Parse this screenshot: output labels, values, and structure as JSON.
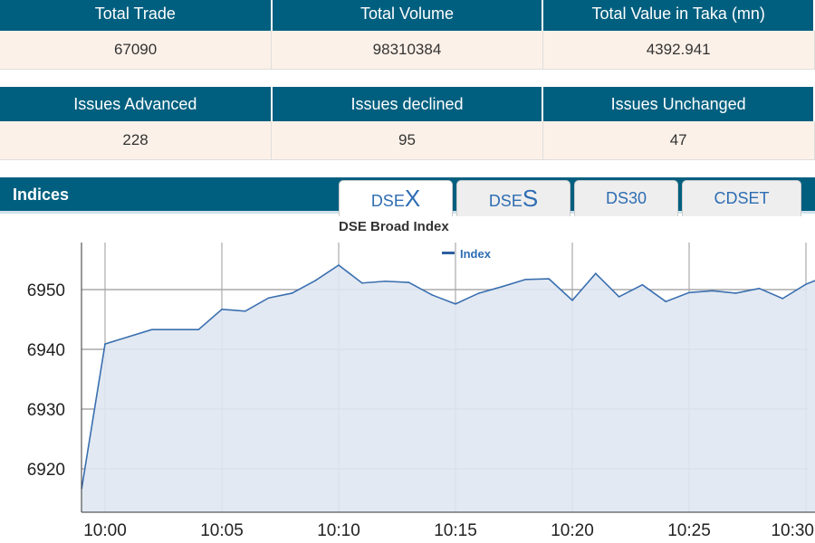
{
  "summary1": {
    "headers": [
      "Total Trade",
      "Total Volume",
      "Total Value in Taka (mn)"
    ],
    "values": [
      "67090",
      "98310384",
      "4392.941"
    ]
  },
  "summary2": {
    "headers": [
      "Issues Advanced",
      "Issues declined",
      "Issues Unchanged"
    ],
    "values": [
      "228",
      "95",
      "47"
    ]
  },
  "indices": {
    "title": "Indices",
    "tabs": [
      {
        "prefix": "DSE",
        "suffix": "X"
      },
      {
        "prefix": "DSE",
        "suffix": "S"
      },
      {
        "label": "DS30"
      },
      {
        "label": "CDSET"
      }
    ]
  },
  "chart_data": {
    "type": "area",
    "title": "DSE Broad Index",
    "legend": "Index",
    "legend_position": "top-center",
    "x_ticks": [
      "10:00",
      "10:05",
      "10:10",
      "10:15",
      "10:20",
      "10:25",
      "10:30"
    ],
    "y_ticks": [
      6920,
      6930,
      6940,
      6950
    ],
    "ylim": [
      6914,
      6958
    ],
    "x_minutes": [
      -1,
      0,
      1,
      2,
      3,
      4,
      5,
      6,
      7,
      8,
      9,
      10,
      11,
      12,
      13,
      14,
      15,
      16,
      17,
      18,
      19,
      20,
      21,
      22,
      23,
      24,
      25,
      26,
      27,
      28,
      29,
      30,
      31
    ],
    "values": [
      6916.7,
      6940.9,
      6942.1,
      6943.3,
      6943.3,
      6943.3,
      6946.7,
      6946.4,
      6948.6,
      6949.4,
      6951.5,
      6954.1,
      6951.1,
      6951.4,
      6951.2,
      6949.1,
      6947.6,
      6949.4,
      6950.5,
      6951.7,
      6951.8,
      6948.2,
      6952.7,
      6948.8,
      6950.8,
      6948.0,
      6949.5,
      6949.8,
      6949.4,
      6950.2,
      6948.5,
      6950.9,
      6951.5
    ],
    "colors": {
      "line": "#3a6fb0",
      "fill": "#dfe7f1"
    }
  }
}
